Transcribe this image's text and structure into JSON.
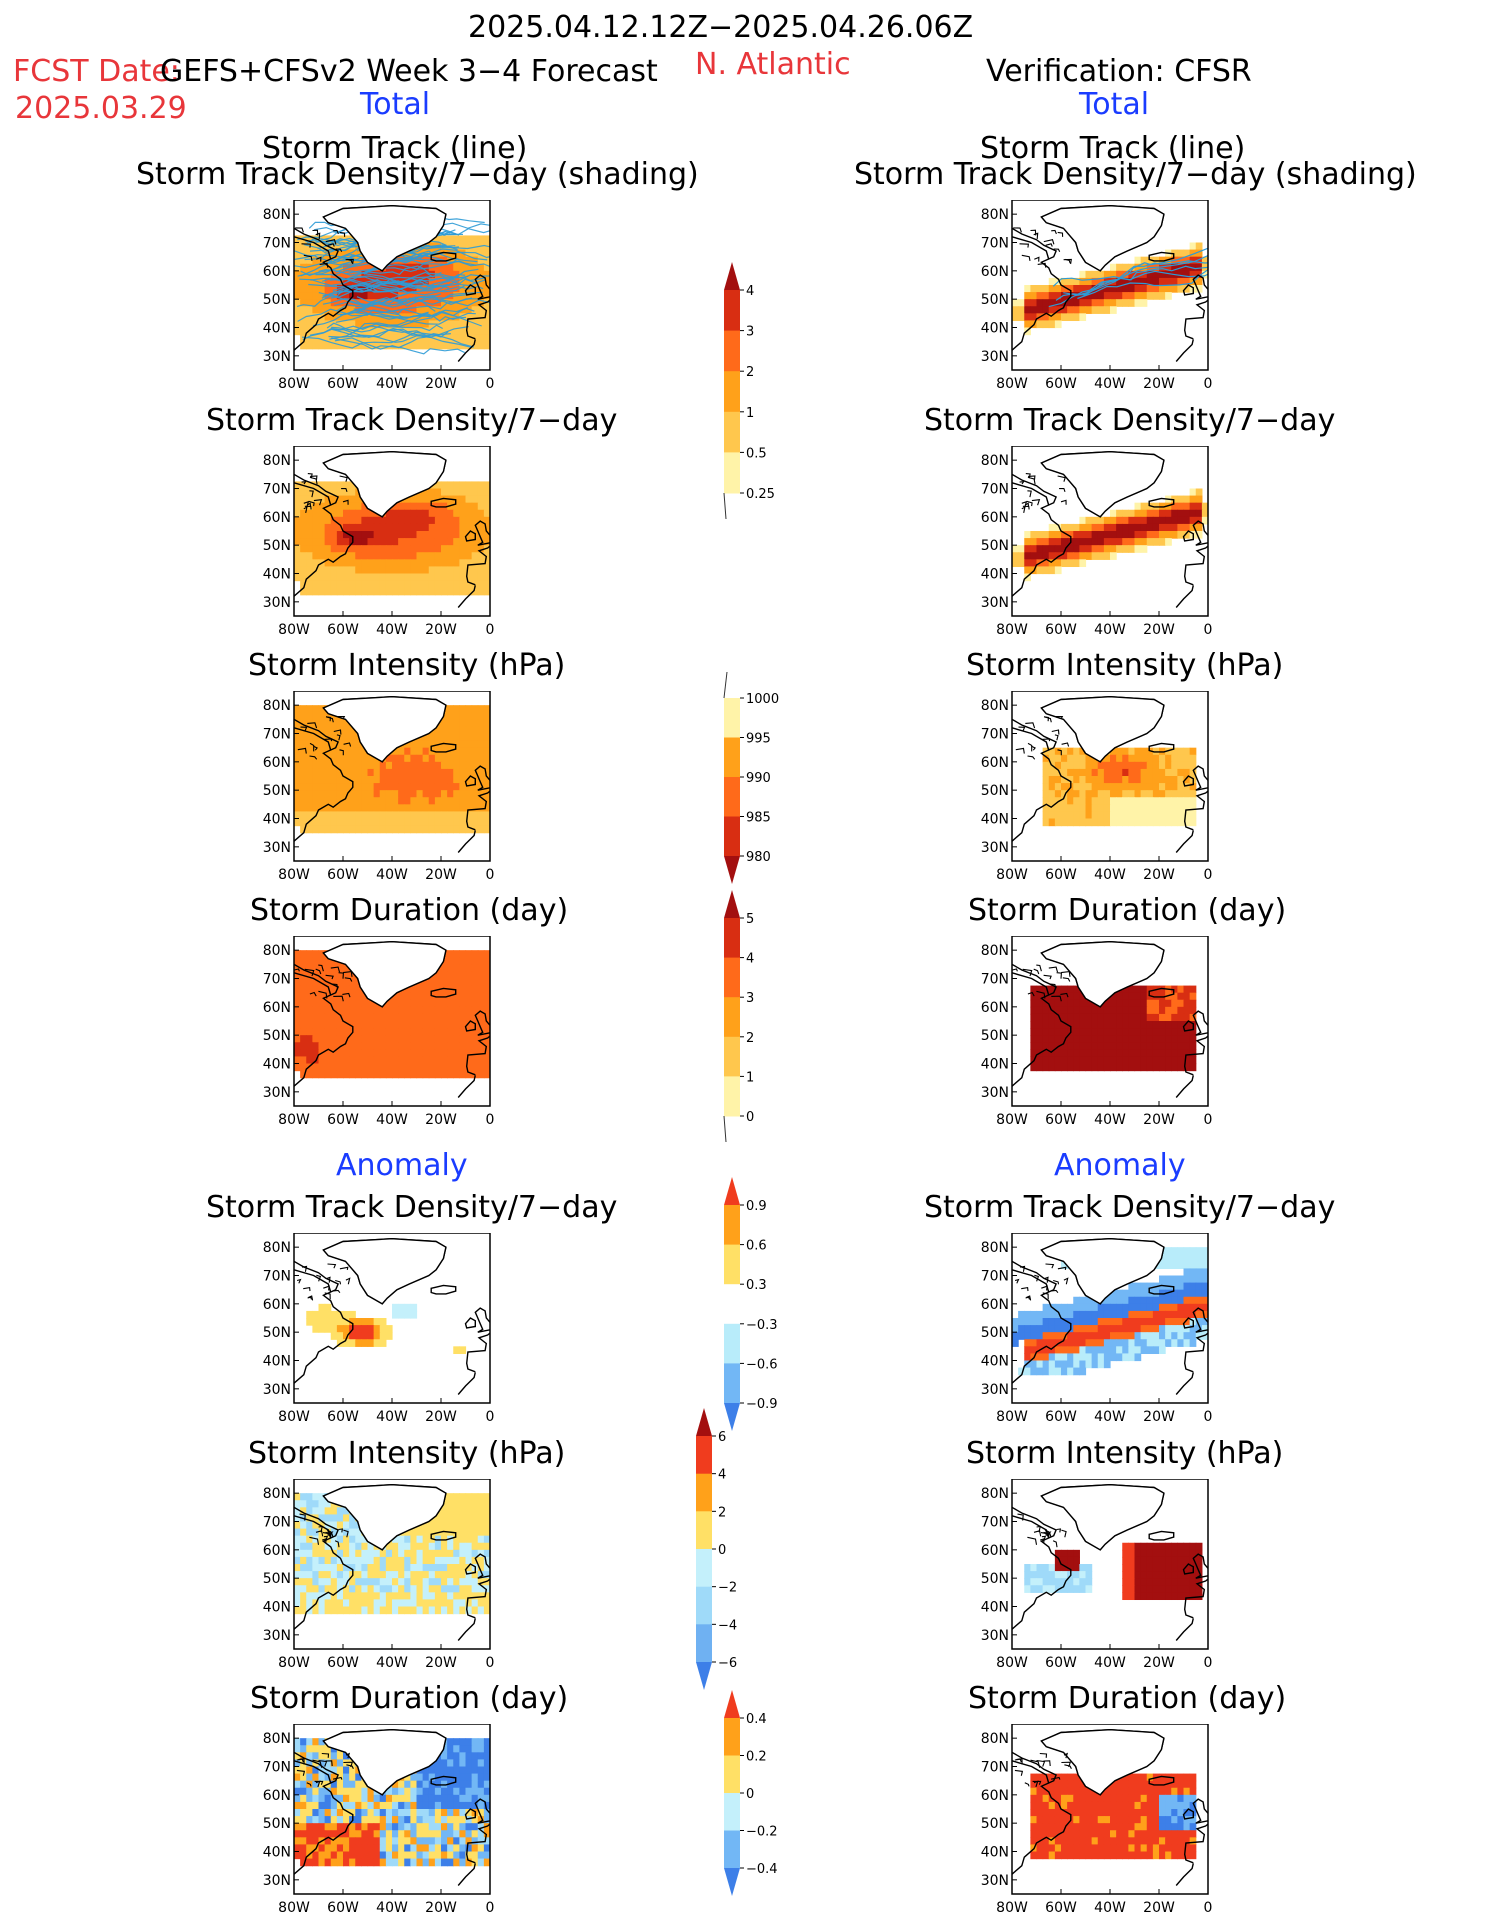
{
  "header": {
    "period": "2025.04.12.12Z−2025.04.26.06Z",
    "fcst_label": "FCST Date:",
    "fcst_date": "2025.03.29",
    "model": "GEFS+CFSv2 Week 3−4 Forecast",
    "region": "N. Atlantic",
    "verification": "Verification: CFSR"
  },
  "sections": {
    "total_left": "Total",
    "total_right": "Total",
    "anomaly_left": "Anomaly",
    "anomaly_right": "Anomaly"
  },
  "panel_titles": {
    "track_line": "Storm Track (line)",
    "track_shading": "Storm Track Density/7−day (shading)",
    "density": "Storm Track Density/7−day",
    "intensity": "Storm Intensity (hPa)",
    "duration": "Storm Duration (day)"
  },
  "axes": {
    "lat_labels": [
      "80N",
      "70N",
      "60N",
      "50N",
      "40N",
      "30N"
    ],
    "lon_labels": [
      "80W",
      "60W",
      "40W",
      "20W",
      "0"
    ]
  },
  "colorbars": {
    "density_total": {
      "labels": [
        "4",
        "3",
        "2",
        "1",
        "0.5",
        "0.25"
      ],
      "colors": [
        "#a30f0f",
        "#d82e12",
        "#ff6a1a",
        "#ffa11a",
        "#ffc74d",
        "#fff3a8"
      ]
    },
    "intensity_total": {
      "labels": [
        "1000",
        "995",
        "990",
        "985",
        "980"
      ],
      "colors": [
        "#fff3a8",
        "#ffa11a",
        "#ff6a1a",
        "#d82e12",
        "#a30f0f"
      ]
    },
    "duration_total": {
      "labels": [
        "5",
        "4",
        "3",
        "2",
        "1",
        "0"
      ],
      "colors": [
        "#a30f0f",
        "#d82e12",
        "#ff6a1a",
        "#ffa11a",
        "#ffc74d",
        "#fff3a8"
      ]
    },
    "density_anom": {
      "labels": [
        "0.9",
        "0.6",
        "0.3",
        "−0.3",
        "−0.6",
        "−0.9"
      ],
      "colors": [
        "#f03c1e",
        "#ffa11a",
        "#ffe066",
        "#ffffff",
        "#b8ecfa",
        "#72b7f5",
        "#3d7fe8"
      ]
    },
    "intensity_anom": {
      "labels": [
        "6",
        "4",
        "2",
        "0",
        "−2",
        "−4",
        "−6"
      ],
      "colors": [
        "#a30f0f",
        "#f03c1e",
        "#ffa11a",
        "#ffe066",
        "#c4f0fb",
        "#9fdaf9",
        "#6fb1f2",
        "#3d7fe8"
      ]
    },
    "duration_anom": {
      "labels": [
        "0.4",
        "0.2",
        "0",
        "−0.2",
        "−0.4"
      ],
      "colors": [
        "#f03c1e",
        "#ffa11a",
        "#ffe066",
        "#c4f0fb",
        "#72b7f5",
        "#3d7fe8"
      ]
    }
  },
  "colors": {
    "red_text": "#e8363a",
    "blue_text": "#1a3cff",
    "track_line": "#2d9bd6"
  }
}
